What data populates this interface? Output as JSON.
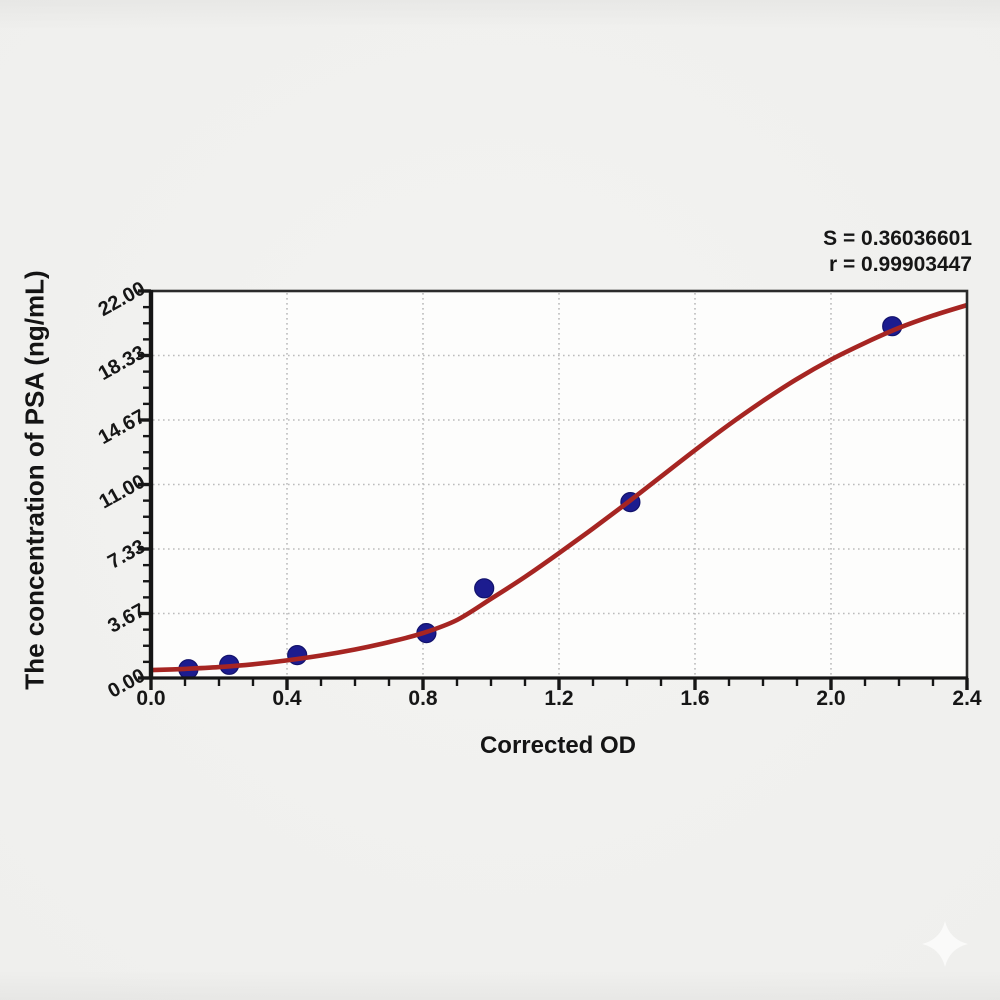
{
  "figure": {
    "stats": {
      "s_line": "S = 0.36036601",
      "r_line": "r = 0.99903447"
    }
  },
  "chart_data": {
    "type": "scatter",
    "title": "",
    "xlabel": "Corrected OD",
    "ylabel": "The concentration of PSA (ng/mL)",
    "xlim": [
      0,
      2.4
    ],
    "ylim": [
      0,
      22
    ],
    "x_ticks": [
      0,
      0.4,
      0.8,
      1.2,
      1.6,
      2.0,
      2.4
    ],
    "x_tick_labels": [
      "0.0",
      "0.4",
      "0.8",
      "1.2",
      "1.6",
      "2.0",
      "2.4"
    ],
    "x_minor_step": 0.1,
    "y_ticks": [
      0,
      3.6667,
      7.3333,
      11,
      14.6667,
      18.3333,
      22
    ],
    "y_tick_labels": [
      "0.00",
      "3.67",
      "7.33",
      "11.00",
      "14.67",
      "18.33",
      "22.00"
    ],
    "y_minor_per_major": 4,
    "grid": "dotted at major ticks",
    "legend": "none",
    "annotations": [
      "S = 0.36036601",
      "r = 0.99903447"
    ],
    "series": [
      {
        "name": "standard points",
        "type": "scatter",
        "points": [
          [
            0.11,
            0.5
          ],
          [
            0.23,
            0.75
          ],
          [
            0.43,
            1.3
          ],
          [
            0.81,
            2.55
          ],
          [
            0.98,
            5.1
          ],
          [
            1.41,
            10.0
          ],
          [
            2.18,
            20.0
          ]
        ]
      },
      {
        "name": "sigmoid fit curve",
        "type": "line",
        "points": [
          [
            0.0,
            0.45
          ],
          [
            0.1,
            0.52
          ],
          [
            0.2,
            0.62
          ],
          [
            0.3,
            0.78
          ],
          [
            0.4,
            1.0
          ],
          [
            0.5,
            1.28
          ],
          [
            0.6,
            1.62
          ],
          [
            0.7,
            2.04
          ],
          [
            0.8,
            2.55
          ],
          [
            0.9,
            3.3
          ],
          [
            1.0,
            4.5
          ],
          [
            1.1,
            5.75
          ],
          [
            1.2,
            7.1
          ],
          [
            1.3,
            8.5
          ],
          [
            1.4,
            9.95
          ],
          [
            1.5,
            11.45
          ],
          [
            1.6,
            12.95
          ],
          [
            1.7,
            14.4
          ],
          [
            1.8,
            15.75
          ],
          [
            1.9,
            17.0
          ],
          [
            2.0,
            18.1
          ],
          [
            2.1,
            19.05
          ],
          [
            2.2,
            19.9
          ],
          [
            2.3,
            20.6
          ],
          [
            2.4,
            21.2
          ]
        ]
      }
    ],
    "colors": {
      "curve": "#a62522",
      "point": "#1c1c8f",
      "point_edge": "#12126b",
      "grid": "#bcbcbc",
      "axis": "#161616",
      "frame": "#2b2b2b",
      "plot_bg": "#fdfdfc",
      "page_bg": "#efefed",
      "text": "#161616",
      "watermark": "#ffffff"
    }
  }
}
